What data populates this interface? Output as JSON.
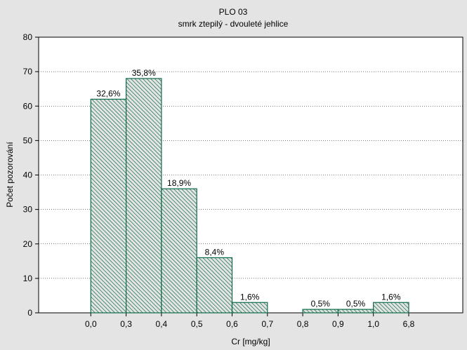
{
  "chart_data": {
    "type": "bar",
    "title": "PLO 03",
    "subtitle": "smrk ztepilý - dvouleté jehlice",
    "xlabel": "Cr [mg/kg]",
    "ylabel": "Počet pozorování",
    "ylim": [
      0,
      80
    ],
    "yticks": [
      "0",
      "10",
      "20",
      "30",
      "40",
      "50",
      "60",
      "70",
      "80"
    ],
    "xticks": [
      "0,0",
      "0,3",
      "0,4",
      "0,5",
      "0,6",
      "0,7",
      "0,8",
      "0,9",
      "1,0",
      "6,8"
    ],
    "values": [
      0,
      62,
      68,
      36,
      16,
      3,
      0,
      1,
      1,
      3,
      0
    ],
    "labels": [
      "",
      "32,6%",
      "35,8%",
      "18,9%",
      "8,4%",
      "1,6%",
      "",
      "0,5%",
      "0,5%",
      "1,6%",
      ""
    ],
    "grid": "horizontal dotted",
    "colors": {
      "bar_fill": "#e4e4e4",
      "bar_stroke": "#0c6a46",
      "hatch": "#0c6a46",
      "plot_bg": "#ffffff",
      "background": "#e4e4e4"
    }
  }
}
